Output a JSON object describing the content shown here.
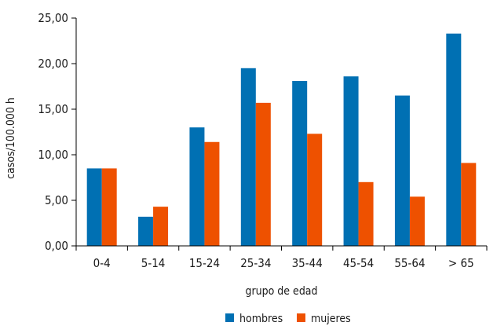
{
  "chart_data": {
    "type": "bar",
    "categories": [
      "0-4",
      "5-14",
      "15-24",
      "25-34",
      "35-44",
      "45-54",
      "55-64",
      "> 65"
    ],
    "series": [
      {
        "name": "hombres",
        "values": [
          8.5,
          3.2,
          13.0,
          19.5,
          18.1,
          18.6,
          16.5,
          23.3
        ]
      },
      {
        "name": "mujeres",
        "values": [
          8.5,
          4.3,
          11.4,
          15.7,
          12.3,
          7.0,
          5.4,
          9.1
        ]
      }
    ],
    "ytick_labels": [
      "0,00",
      "5,00",
      "10,00",
      "15,00",
      "20,00",
      "25,00"
    ],
    "ytick_values": [
      0,
      5,
      10,
      15,
      20,
      25
    ],
    "xlabel": "grupo de edad",
    "ylabel": "casos/100.000 h",
    "ylim": [
      0,
      25
    ],
    "grid": false,
    "legend_position": "bottom",
    "colors": {
      "hombres": "#0070b3",
      "mujeres": "#ee5100"
    }
  }
}
